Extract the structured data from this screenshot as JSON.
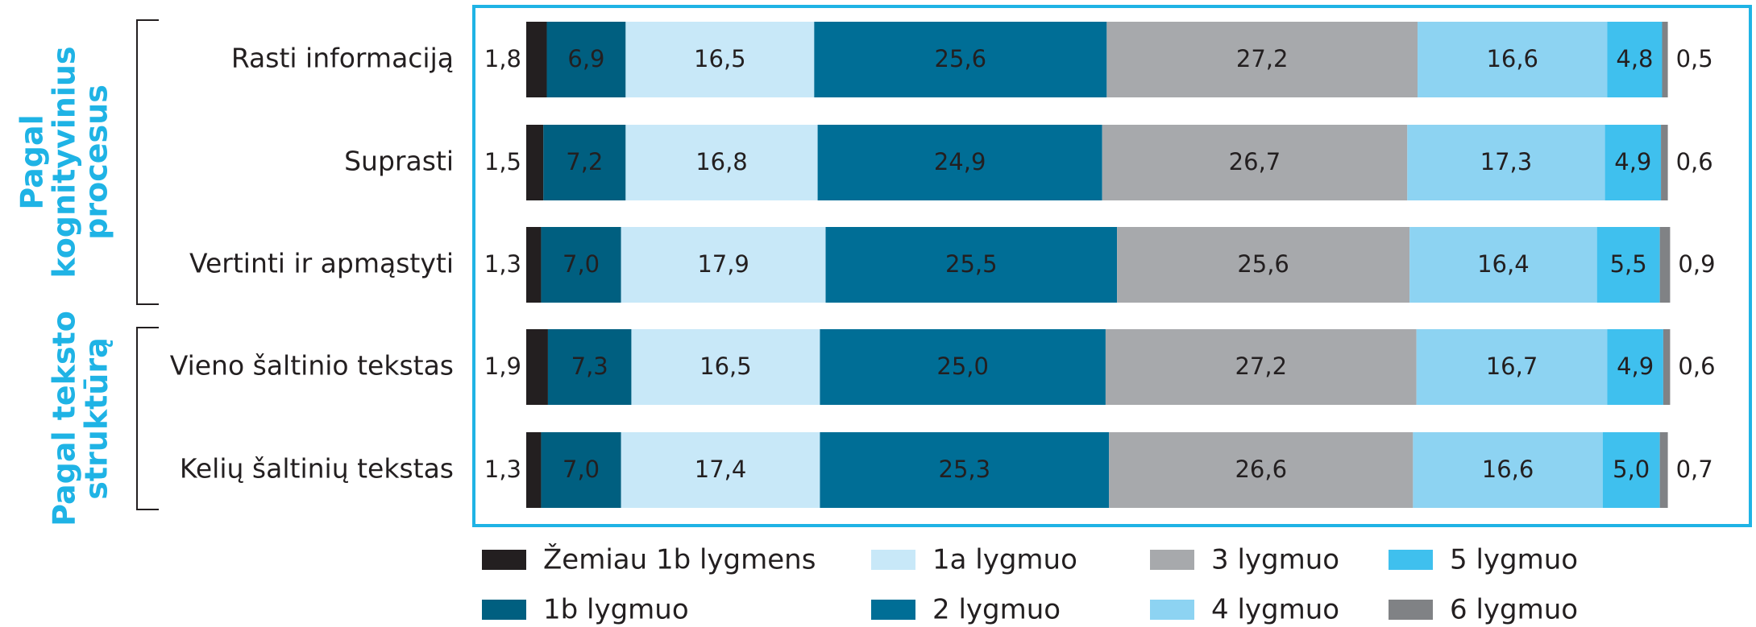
{
  "chart_data": {
    "type": "bar",
    "orientation": "horizontal",
    "stacked": true,
    "groups": [
      {
        "lines": [
          "Pagal",
          "kognityvinius",
          "procesus"
        ],
        "categories": [
          "Rasti informaciją",
          "Suprasti",
          "Vertinti ir apmąstyti"
        ]
      },
      {
        "lines": [
          "Pagal teksto",
          "struktūrą"
        ],
        "categories": [
          "Vieno šaltinio tekstas",
          "Kelių šaltinių tekstas"
        ]
      }
    ],
    "xlim": [
      0,
      100
    ],
    "series": [
      {
        "name": "Žemiau 1b lygmens",
        "color": "#231f20",
        "values": [
          1.8,
          1.5,
          1.3,
          1.9,
          1.3
        ],
        "value_labels": [
          "1,8",
          "1,5",
          "1,3",
          "1,9",
          "1,3"
        ]
      },
      {
        "name": "1b lygmuo",
        "color": "#005f80",
        "values": [
          6.9,
          7.2,
          7.0,
          7.3,
          7.0
        ],
        "value_labels": [
          "6,9",
          "7,2",
          "7,0",
          "7,3",
          "7,0"
        ]
      },
      {
        "name": "1a lygmuo",
        "color": "#c8e8f8",
        "values": [
          16.5,
          16.8,
          17.9,
          16.5,
          17.4
        ],
        "value_labels": [
          "16,5",
          "16,8",
          "17,9",
          "16,5",
          "17,4"
        ]
      },
      {
        "name": "2 lygmuo",
        "color": "#006e96",
        "values": [
          25.6,
          24.9,
          25.5,
          25.0,
          25.3
        ],
        "value_labels": [
          "25,6",
          "24,9",
          "25,5",
          "25,0",
          "25,3"
        ]
      },
      {
        "name": "3 lygmuo",
        "color": "#a7a9ac",
        "values": [
          27.2,
          26.7,
          25.6,
          27.2,
          26.6
        ],
        "value_labels": [
          "27,2",
          "26,7",
          "25,6",
          "27,2",
          "26,6"
        ]
      },
      {
        "name": "4 lygmuo",
        "color": "#8dd3f2",
        "values": [
          16.6,
          17.3,
          16.4,
          16.7,
          16.6
        ],
        "value_labels": [
          "16,6",
          "17,3",
          "16,4",
          "16,7",
          "16,6"
        ]
      },
      {
        "name": "5 lygmuo",
        "color": "#3fc0ee",
        "values": [
          4.8,
          4.9,
          5.5,
          4.9,
          5.0
        ],
        "value_labels": [
          "4,8",
          "4,9",
          "5,5",
          "4,9",
          "5,0"
        ]
      },
      {
        "name": "6 lygmuo",
        "color": "#808285",
        "values": [
          0.5,
          0.6,
          0.9,
          0.6,
          0.7
        ],
        "value_labels": [
          "0,5",
          "0,6",
          "0,9",
          "0,6",
          "0,7"
        ]
      }
    ]
  }
}
